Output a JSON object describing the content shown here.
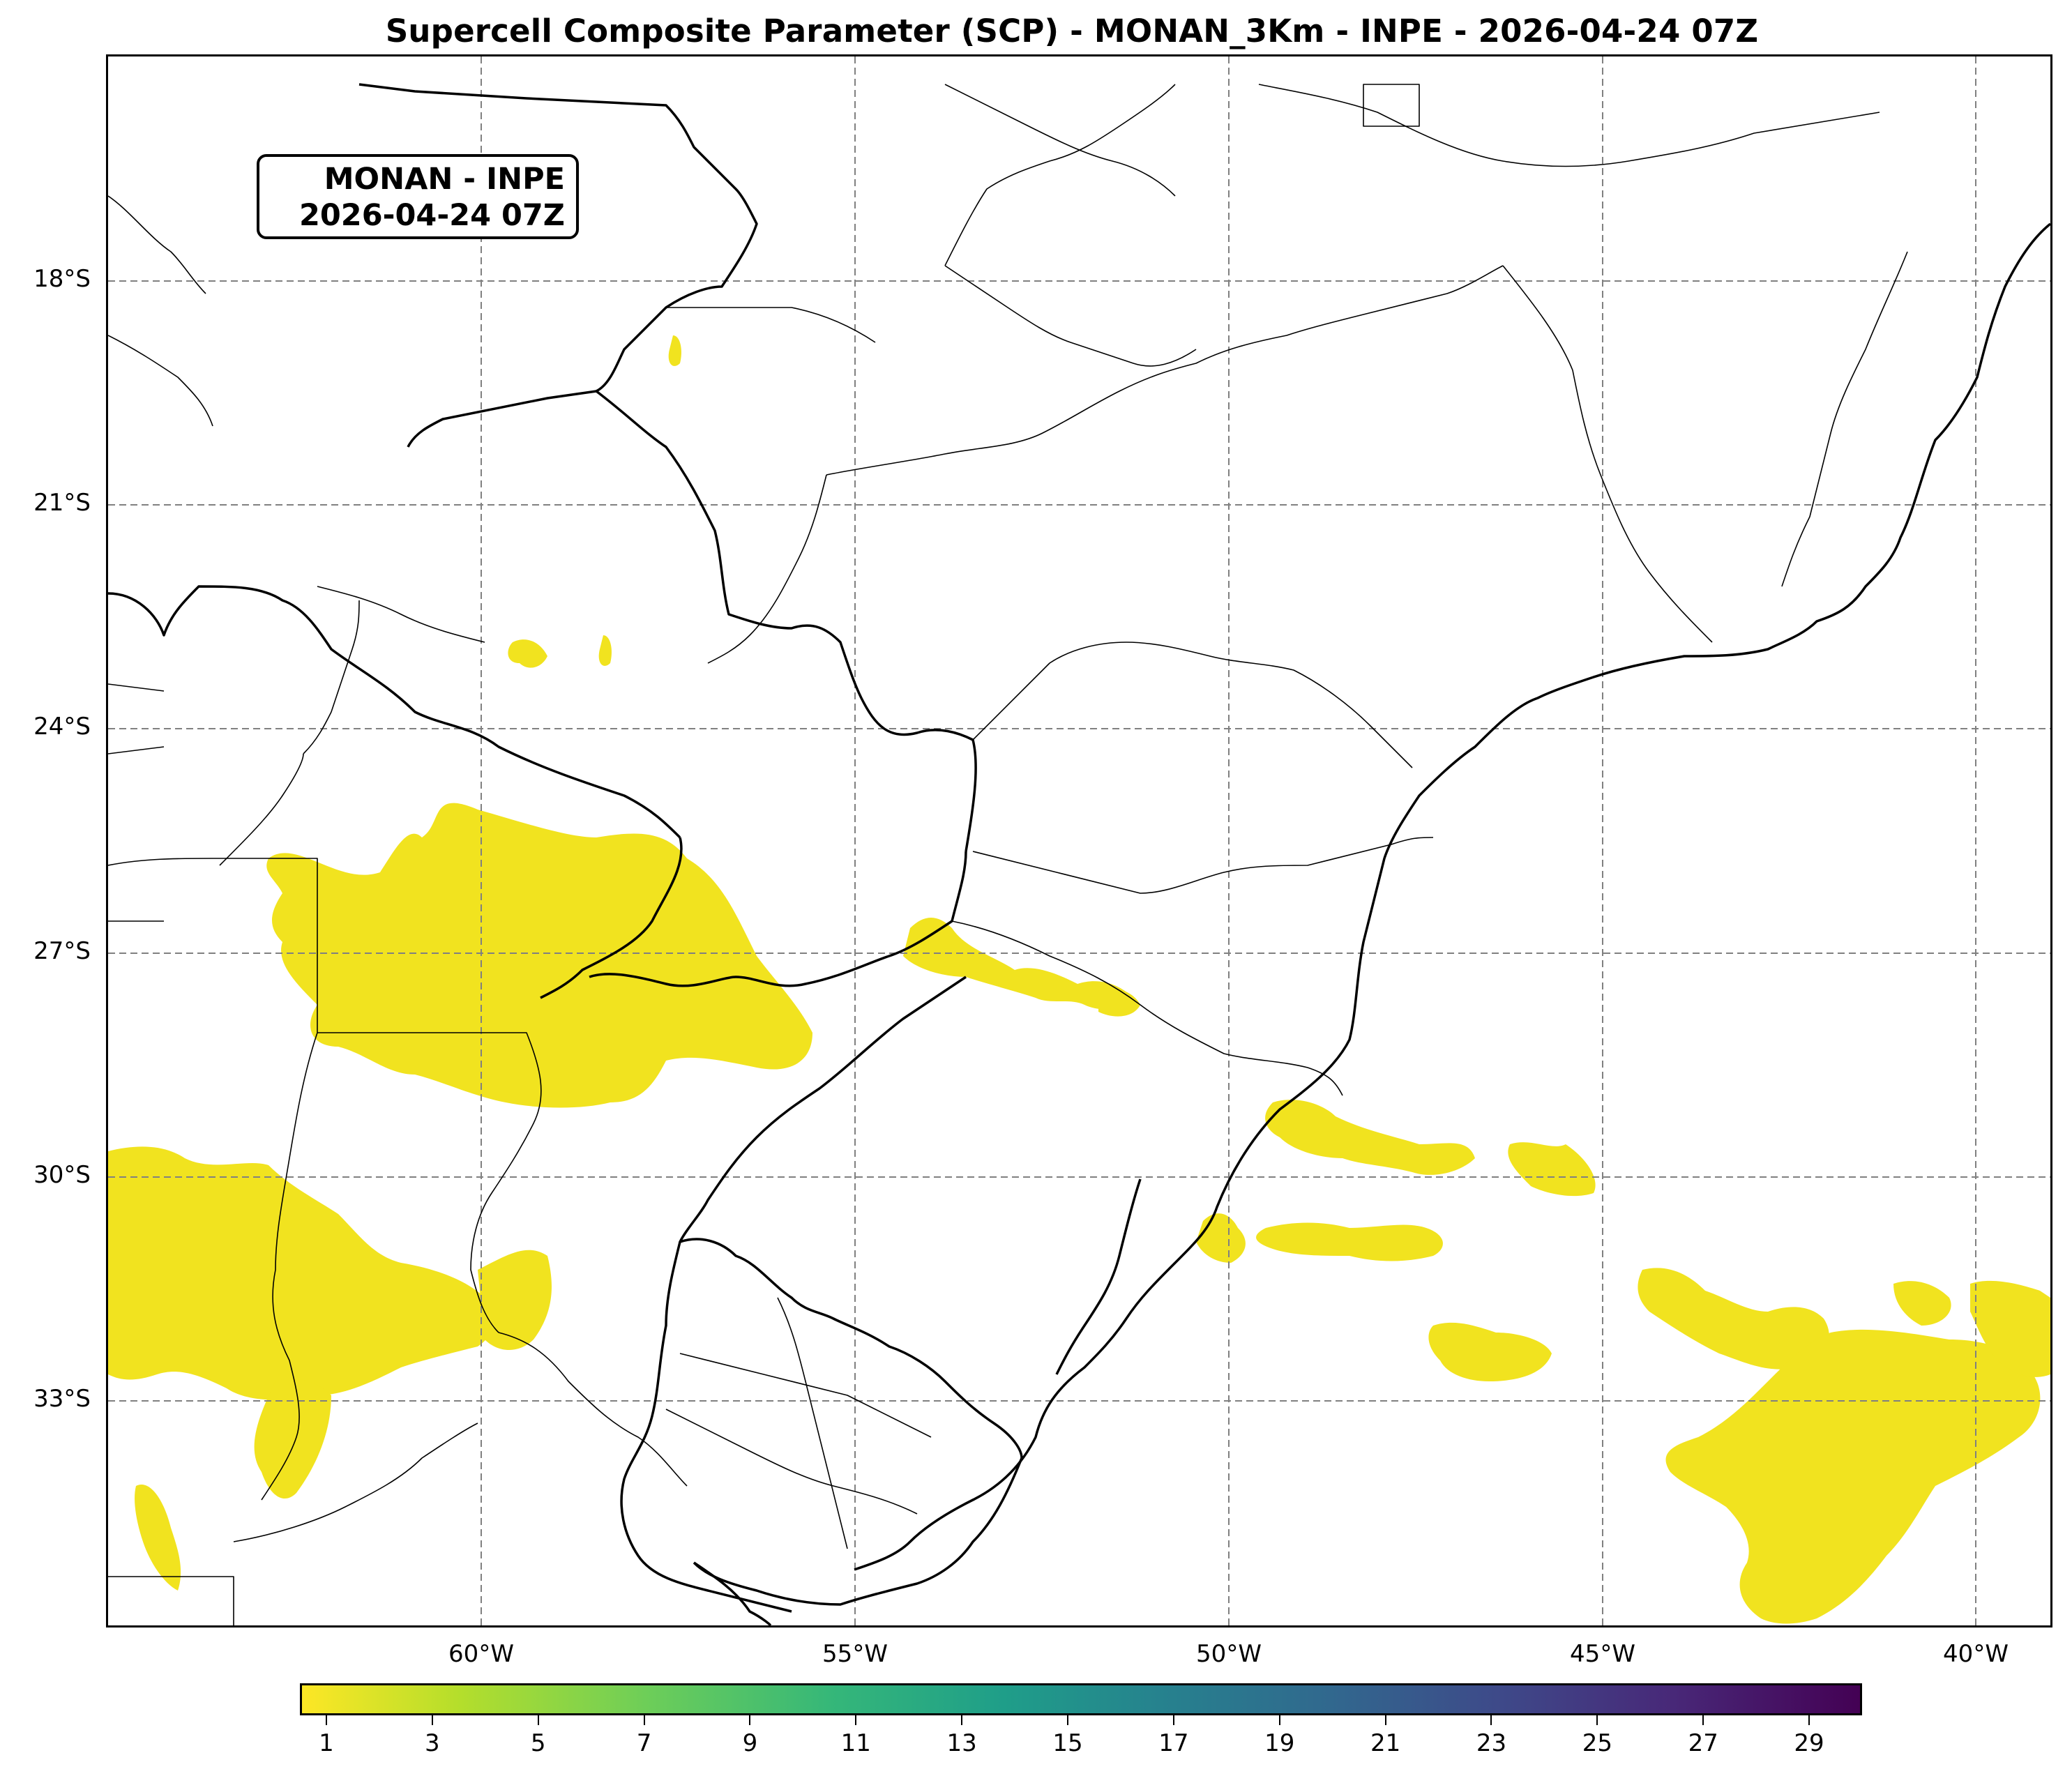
{
  "title": "Supercell Composite Parameter (SCP) - MONAN_3Km - INPE - 2026-04-24 07Z",
  "infobox": {
    "line1": "MONAN - INPE",
    "line2": "2026-04-24 07Z"
  },
  "map": {
    "lat_labels": [
      "18°S",
      "21°S",
      "24°S",
      "27°S",
      "30°S",
      "33°S"
    ],
    "lon_labels": [
      "60°W",
      "55°W",
      "50°W",
      "45°W",
      "40°W"
    ]
  },
  "colorbar": {
    "colormap": "viridis",
    "ticks": [
      "1",
      "3",
      "5",
      "7",
      "9",
      "11",
      "13",
      "15",
      "17",
      "19",
      "21",
      "23",
      "25",
      "27",
      "29"
    ],
    "range": [
      0.5,
      30
    ]
  },
  "colors": {
    "field": "#f1e31f",
    "grid": "#808080",
    "border": "#000000"
  }
}
